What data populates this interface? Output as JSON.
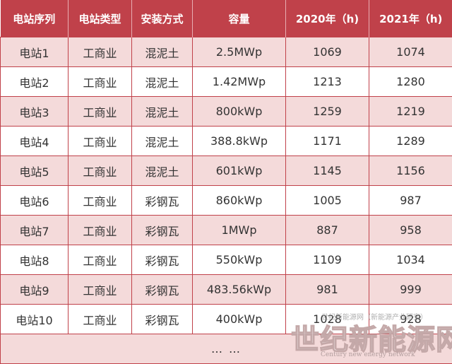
{
  "table": {
    "headers": [
      "电站序列",
      "电站类型",
      "安装方式",
      "容量",
      "2020年（h)",
      "2021年（h)"
    ],
    "rows": [
      [
        "电站1",
        "工商业",
        "混泥土",
        "2.5MWp",
        "1069",
        "1074"
      ],
      [
        "电站2",
        "工商业",
        "混泥土",
        "1.42MWp",
        "1213",
        "1280"
      ],
      [
        "电站3",
        "工商业",
        "混泥土",
        "800kWp",
        "1259",
        "1219"
      ],
      [
        "电站4",
        "工商业",
        "混泥土",
        "388.8kWp",
        "1171",
        "1289"
      ],
      [
        "电站5",
        "工商业",
        "混泥土",
        "601kWp",
        "1145",
        "1156"
      ],
      [
        "电站6",
        "工商业",
        "彩钢瓦",
        "860kWp",
        "1005",
        "987"
      ],
      [
        "电站7",
        "工商业",
        "彩钢瓦",
        "1MWp",
        "887",
        "958"
      ],
      [
        "电站8",
        "工商业",
        "彩钢瓦",
        "550kWp",
        "1109",
        "1034"
      ],
      [
        "电站9",
        "工商业",
        "彩钢瓦",
        "483.56kWp",
        "981",
        "999"
      ],
      [
        "电站10",
        "工商业",
        "彩钢瓦",
        "400kWp",
        "1028",
        "928"
      ]
    ],
    "ellipsis": "… …"
  },
  "watermark": {
    "source_line": "世纪新能源网（新能源产业研究）",
    "brand": "世纪新能源网",
    "english": "Century new energy network"
  },
  "colors": {
    "header_bg": "#c0414a",
    "stripe_bg": "#f4dada",
    "border": "#c0414a"
  }
}
